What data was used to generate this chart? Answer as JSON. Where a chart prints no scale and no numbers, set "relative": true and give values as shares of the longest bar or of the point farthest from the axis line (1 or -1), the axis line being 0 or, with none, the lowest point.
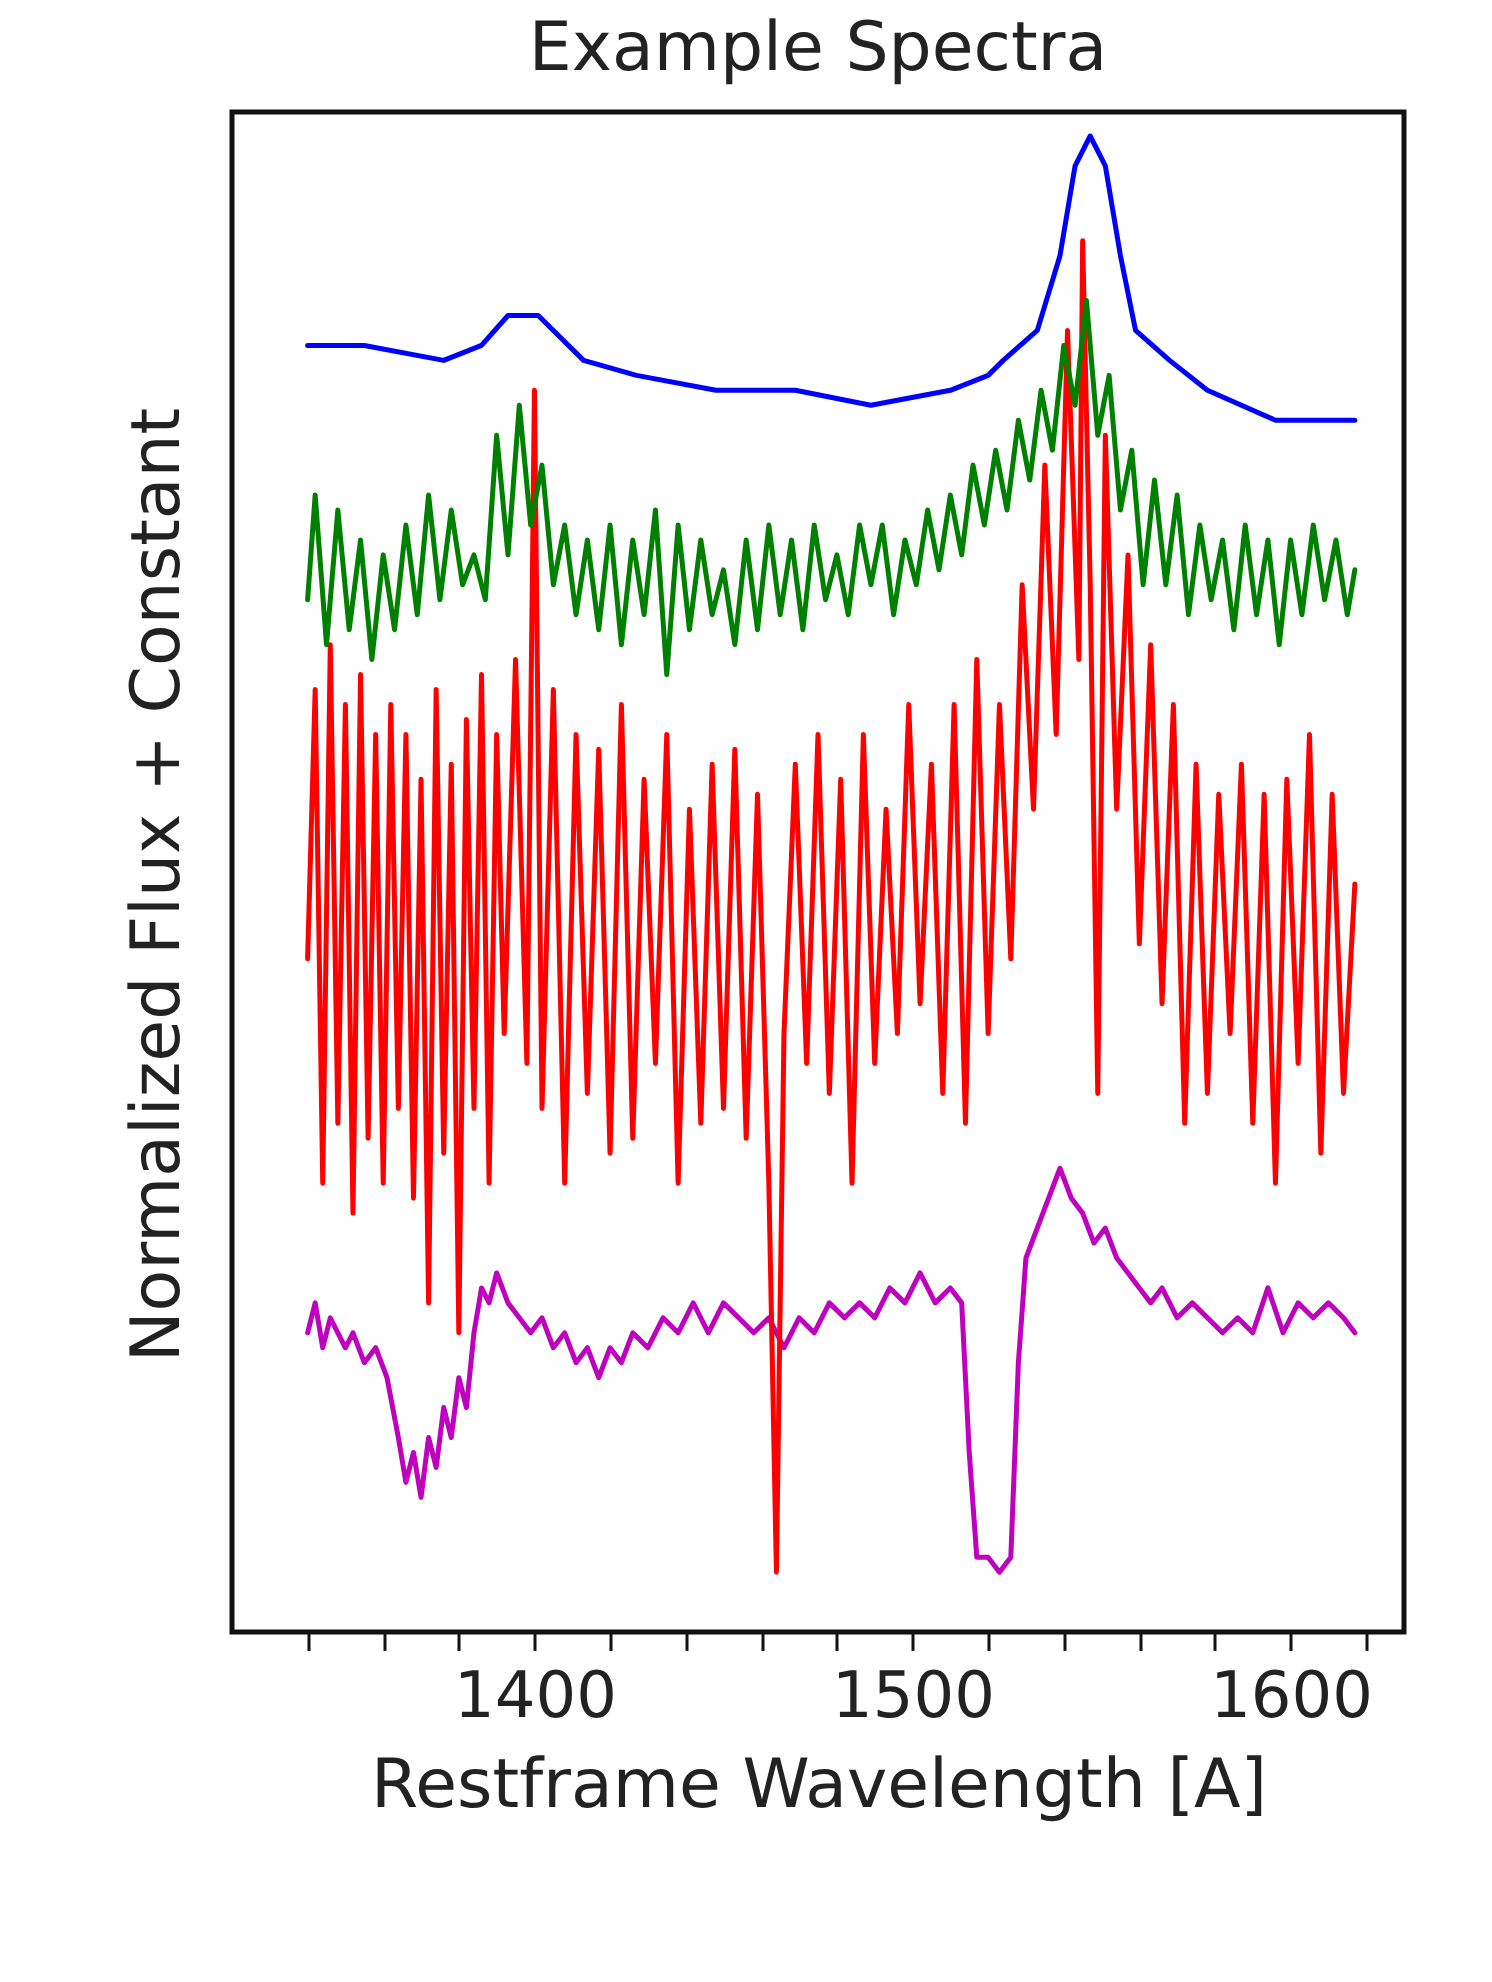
{
  "chart_data": {
    "type": "line",
    "title": "Example Spectra",
    "xlabel": "Restframe Wavelength [A]",
    "ylabel": "Normalized Flux + Constant",
    "relative": true,
    "grid": false,
    "tick_labels": "x",
    "xlim": [
      1320,
      1630
    ],
    "xticks": [
      {
        "value": 1340,
        "label": null
      },
      {
        "value": 1360,
        "label": null
      },
      {
        "value": 1380,
        "label": null
      },
      1400,
      {
        "value": 1420,
        "label": null
      },
      {
        "value": 1440,
        "label": null
      },
      {
        "value": 1460,
        "label": null
      },
      {
        "value": 1480,
        "label": null
      },
      1500,
      {
        "value": 1520,
        "label": null
      },
      {
        "value": 1540,
        "label": null
      },
      {
        "value": 1560,
        "label": null
      },
      {
        "value": 1580,
        "label": null
      },
      1600,
      {
        "value": 1620,
        "label": null
      }
    ],
    "series": [
      {
        "color": "#0000ff",
        "x": [
          1340,
          1355,
          1376,
          1386,
          1393,
          1401,
          1405,
          1413,
          1427,
          1448,
          1469,
          1489,
          1510,
          1520,
          1524,
          1533,
          1539,
          1543,
          1547,
          1551,
          1555,
          1559,
          1568,
          1578,
          1596,
          1617
        ],
        "values": [
          0.86,
          0.86,
          0.85,
          0.86,
          0.88,
          0.88,
          0.87,
          0.85,
          0.84,
          0.83,
          0.83,
          0.82,
          0.83,
          0.84,
          0.85,
          0.87,
          0.92,
          0.98,
          1,
          0.98,
          0.92,
          0.87,
          0.85,
          0.83,
          0.81,
          0.81
        ]
      },
      {
        "color": "#008000",
        "x": [
          1340,
          1342,
          1345,
          1348,
          1351,
          1354,
          1357,
          1360,
          1363,
          1366,
          1369,
          1372,
          1375,
          1378,
          1381,
          1384,
          1387,
          1390,
          1393,
          1396,
          1399,
          1402,
          1405,
          1408,
          1411,
          1414,
          1417,
          1420,
          1423,
          1426,
          1429,
          1432,
          1435,
          1438,
          1441,
          1444,
          1447,
          1450,
          1453,
          1456,
          1459,
          1462,
          1465,
          1468,
          1471,
          1474,
          1477,
          1480,
          1483,
          1486,
          1489,
          1492,
          1495,
          1498,
          1501,
          1504,
          1507,
          1510,
          1513,
          1516,
          1519,
          1522,
          1525,
          1528,
          1531,
          1534,
          1537,
          1540,
          1543,
          1546,
          1549,
          1552,
          1555,
          1558,
          1561,
          1564,
          1567,
          1570,
          1573,
          1576,
          1579,
          1582,
          1585,
          1588,
          1591,
          1594,
          1597,
          1600,
          1603,
          1606,
          1609,
          1612,
          1615,
          1617
        ],
        "values": [
          0.69,
          0.76,
          0.66,
          0.75,
          0.67,
          0.73,
          0.65,
          0.72,
          0.67,
          0.74,
          0.68,
          0.76,
          0.69,
          0.75,
          0.7,
          0.72,
          0.69,
          0.8,
          0.72,
          0.82,
          0.74,
          0.78,
          0.7,
          0.74,
          0.68,
          0.73,
          0.67,
          0.74,
          0.66,
          0.73,
          0.68,
          0.75,
          0.64,
          0.74,
          0.67,
          0.73,
          0.68,
          0.71,
          0.66,
          0.73,
          0.67,
          0.74,
          0.68,
          0.73,
          0.67,
          0.74,
          0.69,
          0.72,
          0.68,
          0.74,
          0.7,
          0.74,
          0.68,
          0.73,
          0.7,
          0.75,
          0.71,
          0.76,
          0.72,
          0.78,
          0.74,
          0.79,
          0.75,
          0.81,
          0.77,
          0.83,
          0.79,
          0.86,
          0.82,
          0.89,
          0.8,
          0.84,
          0.75,
          0.79,
          0.7,
          0.77,
          0.7,
          0.76,
          0.68,
          0.74,
          0.69,
          0.73,
          0.67,
          0.74,
          0.68,
          0.73,
          0.66,
          0.73,
          0.68,
          0.74,
          0.69,
          0.73,
          0.68,
          0.71
        ]
      },
      {
        "color": "#ff0000",
        "x": [
          1340,
          1342,
          1344,
          1346,
          1348,
          1350,
          1352,
          1354,
          1356,
          1358,
          1360,
          1362,
          1364,
          1366,
          1368,
          1370,
          1372,
          1374,
          1376,
          1378,
          1380,
          1382,
          1384,
          1386,
          1388,
          1390,
          1392,
          1395,
          1398,
          1400,
          1402,
          1405,
          1408,
          1411,
          1414,
          1417,
          1420,
          1423,
          1426,
          1429,
          1432,
          1435,
          1438,
          1441,
          1444,
          1447,
          1450,
          1453,
          1456,
          1459,
          1462,
          1464,
          1466,
          1469,
          1472,
          1475,
          1478,
          1481,
          1484,
          1487,
          1490,
          1493,
          1496,
          1499,
          1502,
          1505,
          1508,
          1511,
          1514,
          1517,
          1520,
          1523,
          1526,
          1529,
          1532,
          1535,
          1538,
          1541,
          1544,
          1545,
          1547,
          1549,
          1551,
          1554,
          1557,
          1560,
          1563,
          1566,
          1569,
          1572,
          1575,
          1578,
          1581,
          1584,
          1587,
          1590,
          1593,
          1596,
          1599,
          1602,
          1605,
          1608,
          1611,
          1614,
          1617
        ],
        "values": [
          0.45,
          0.63,
          0.3,
          0.66,
          0.34,
          0.62,
          0.28,
          0.64,
          0.33,
          0.6,
          0.3,
          0.62,
          0.35,
          0.6,
          0.29,
          0.57,
          0.22,
          0.63,
          0.32,
          0.58,
          0.2,
          0.61,
          0.35,
          0.64,
          0.3,
          0.6,
          0.4,
          0.65,
          0.38,
          0.83,
          0.35,
          0.63,
          0.3,
          0.6,
          0.36,
          0.59,
          0.32,
          0.62,
          0.33,
          0.57,
          0.38,
          0.6,
          0.3,
          0.55,
          0.34,
          0.58,
          0.35,
          0.59,
          0.33,
          0.56,
          0.3,
          0.04,
          0.4,
          0.58,
          0.38,
          0.6,
          0.36,
          0.57,
          0.3,
          0.6,
          0.38,
          0.55,
          0.4,
          0.62,
          0.42,
          0.58,
          0.36,
          0.62,
          0.34,
          0.65,
          0.4,
          0.62,
          0.45,
          0.7,
          0.55,
          0.78,
          0.6,
          0.87,
          0.65,
          0.93,
          0.7,
          0.36,
          0.8,
          0.55,
          0.72,
          0.46,
          0.66,
          0.42,
          0.62,
          0.34,
          0.58,
          0.36,
          0.56,
          0.4,
          0.58,
          0.34,
          0.56,
          0.3,
          0.57,
          0.38,
          0.6,
          0.32,
          0.56,
          0.36,
          0.5
        ]
      },
      {
        "color": "#bf00bf",
        "x": [
          1340,
          1342,
          1344,
          1346,
          1348,
          1350,
          1352,
          1355,
          1358,
          1361,
          1364,
          1366,
          1368,
          1370,
          1372,
          1374,
          1376,
          1378,
          1380,
          1382,
          1384,
          1386,
          1388,
          1390,
          1393,
          1396,
          1399,
          1402,
          1405,
          1408,
          1411,
          1414,
          1417,
          1420,
          1423,
          1426,
          1430,
          1434,
          1438,
          1442,
          1446,
          1450,
          1454,
          1458,
          1462,
          1466,
          1470,
          1474,
          1478,
          1482,
          1486,
          1490,
          1494,
          1498,
          1502,
          1506,
          1510,
          1513,
          1515,
          1517,
          1520,
          1523,
          1526,
          1528,
          1530,
          1533,
          1536,
          1539,
          1542,
          1545,
          1548,
          1551,
          1554,
          1557,
          1560,
          1563,
          1566,
          1570,
          1574,
          1578,
          1582,
          1586,
          1590,
          1594,
          1598,
          1602,
          1606,
          1610,
          1614,
          1617
        ],
        "values": [
          0.2,
          0.22,
          0.19,
          0.21,
          0.2,
          0.19,
          0.2,
          0.18,
          0.19,
          0.17,
          0.13,
          0.1,
          0.12,
          0.09,
          0.13,
          0.11,
          0.15,
          0.13,
          0.17,
          0.15,
          0.2,
          0.23,
          0.22,
          0.24,
          0.22,
          0.21,
          0.2,
          0.21,
          0.19,
          0.2,
          0.18,
          0.19,
          0.17,
          0.19,
          0.18,
          0.2,
          0.19,
          0.21,
          0.2,
          0.22,
          0.2,
          0.22,
          0.21,
          0.2,
          0.21,
          0.19,
          0.21,
          0.2,
          0.22,
          0.21,
          0.22,
          0.21,
          0.23,
          0.22,
          0.24,
          0.22,
          0.23,
          0.22,
          0.12,
          0.05,
          0.05,
          0.04,
          0.05,
          0.18,
          0.25,
          0.27,
          0.29,
          0.31,
          0.29,
          0.28,
          0.26,
          0.27,
          0.25,
          0.24,
          0.23,
          0.22,
          0.23,
          0.21,
          0.22,
          0.21,
          0.2,
          0.21,
          0.2,
          0.23,
          0.2,
          0.22,
          0.21,
          0.22,
          0.21,
          0.2
        ]
      }
    ]
  }
}
